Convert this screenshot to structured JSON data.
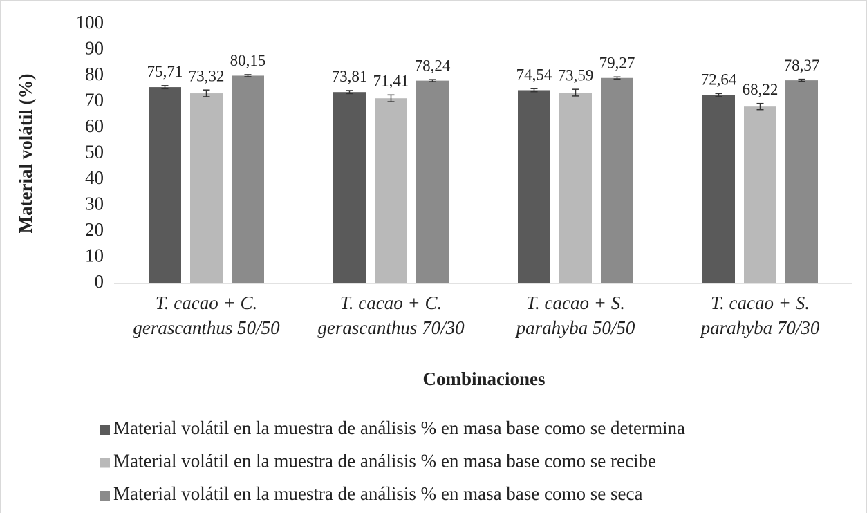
{
  "chart_data": {
    "type": "bar",
    "y_label": "Material volátil (%)",
    "x_label": "Combinaciones",
    "categories": [
      "T. cacao + C.\ngerascanthus 50/50",
      "T. cacao + C.\ngerascanthus 70/30",
      "T. cacao + S.\nparahyba 50/50",
      "T. cacao + S.\nparahyba 70/30"
    ],
    "series": [
      {
        "name": "Material volátil en la muestra de análisis % en masa base como se determina",
        "color": "#5a5a5a",
        "values": [
          75.71,
          73.81,
          74.54,
          72.64
        ],
        "value_labels": [
          "75,71",
          "73,81",
          "74,54",
          "72,64"
        ],
        "errors": [
          0.6,
          0.6,
          0.6,
          0.6
        ]
      },
      {
        "name": "Material volátil en la muestra de análisis % en masa base como se recibe",
        "color": "#b9b9b9",
        "values": [
          73.32,
          71.41,
          73.59,
          68.22
        ],
        "value_labels": [
          "73,32",
          "71,41",
          "73,59",
          "68,22"
        ],
        "errors": [
          1.3,
          1.3,
          1.3,
          1.2
        ]
      },
      {
        "name": "Material volátil en la muestra de análisis % en masa base como se seca",
        "color": "#8b8b8b",
        "values": [
          80.15,
          78.24,
          79.27,
          78.37
        ],
        "value_labels": [
          "80,15",
          "78,24",
          "79,27",
          "78,37"
        ],
        "errors": [
          0.4,
          0.4,
          0.4,
          0.4
        ]
      }
    ],
    "ylim": [
      0,
      100
    ],
    "yticks": [
      0,
      10,
      20,
      30,
      40,
      50,
      60,
      70,
      80,
      90,
      100
    ],
    "grid": false
  }
}
